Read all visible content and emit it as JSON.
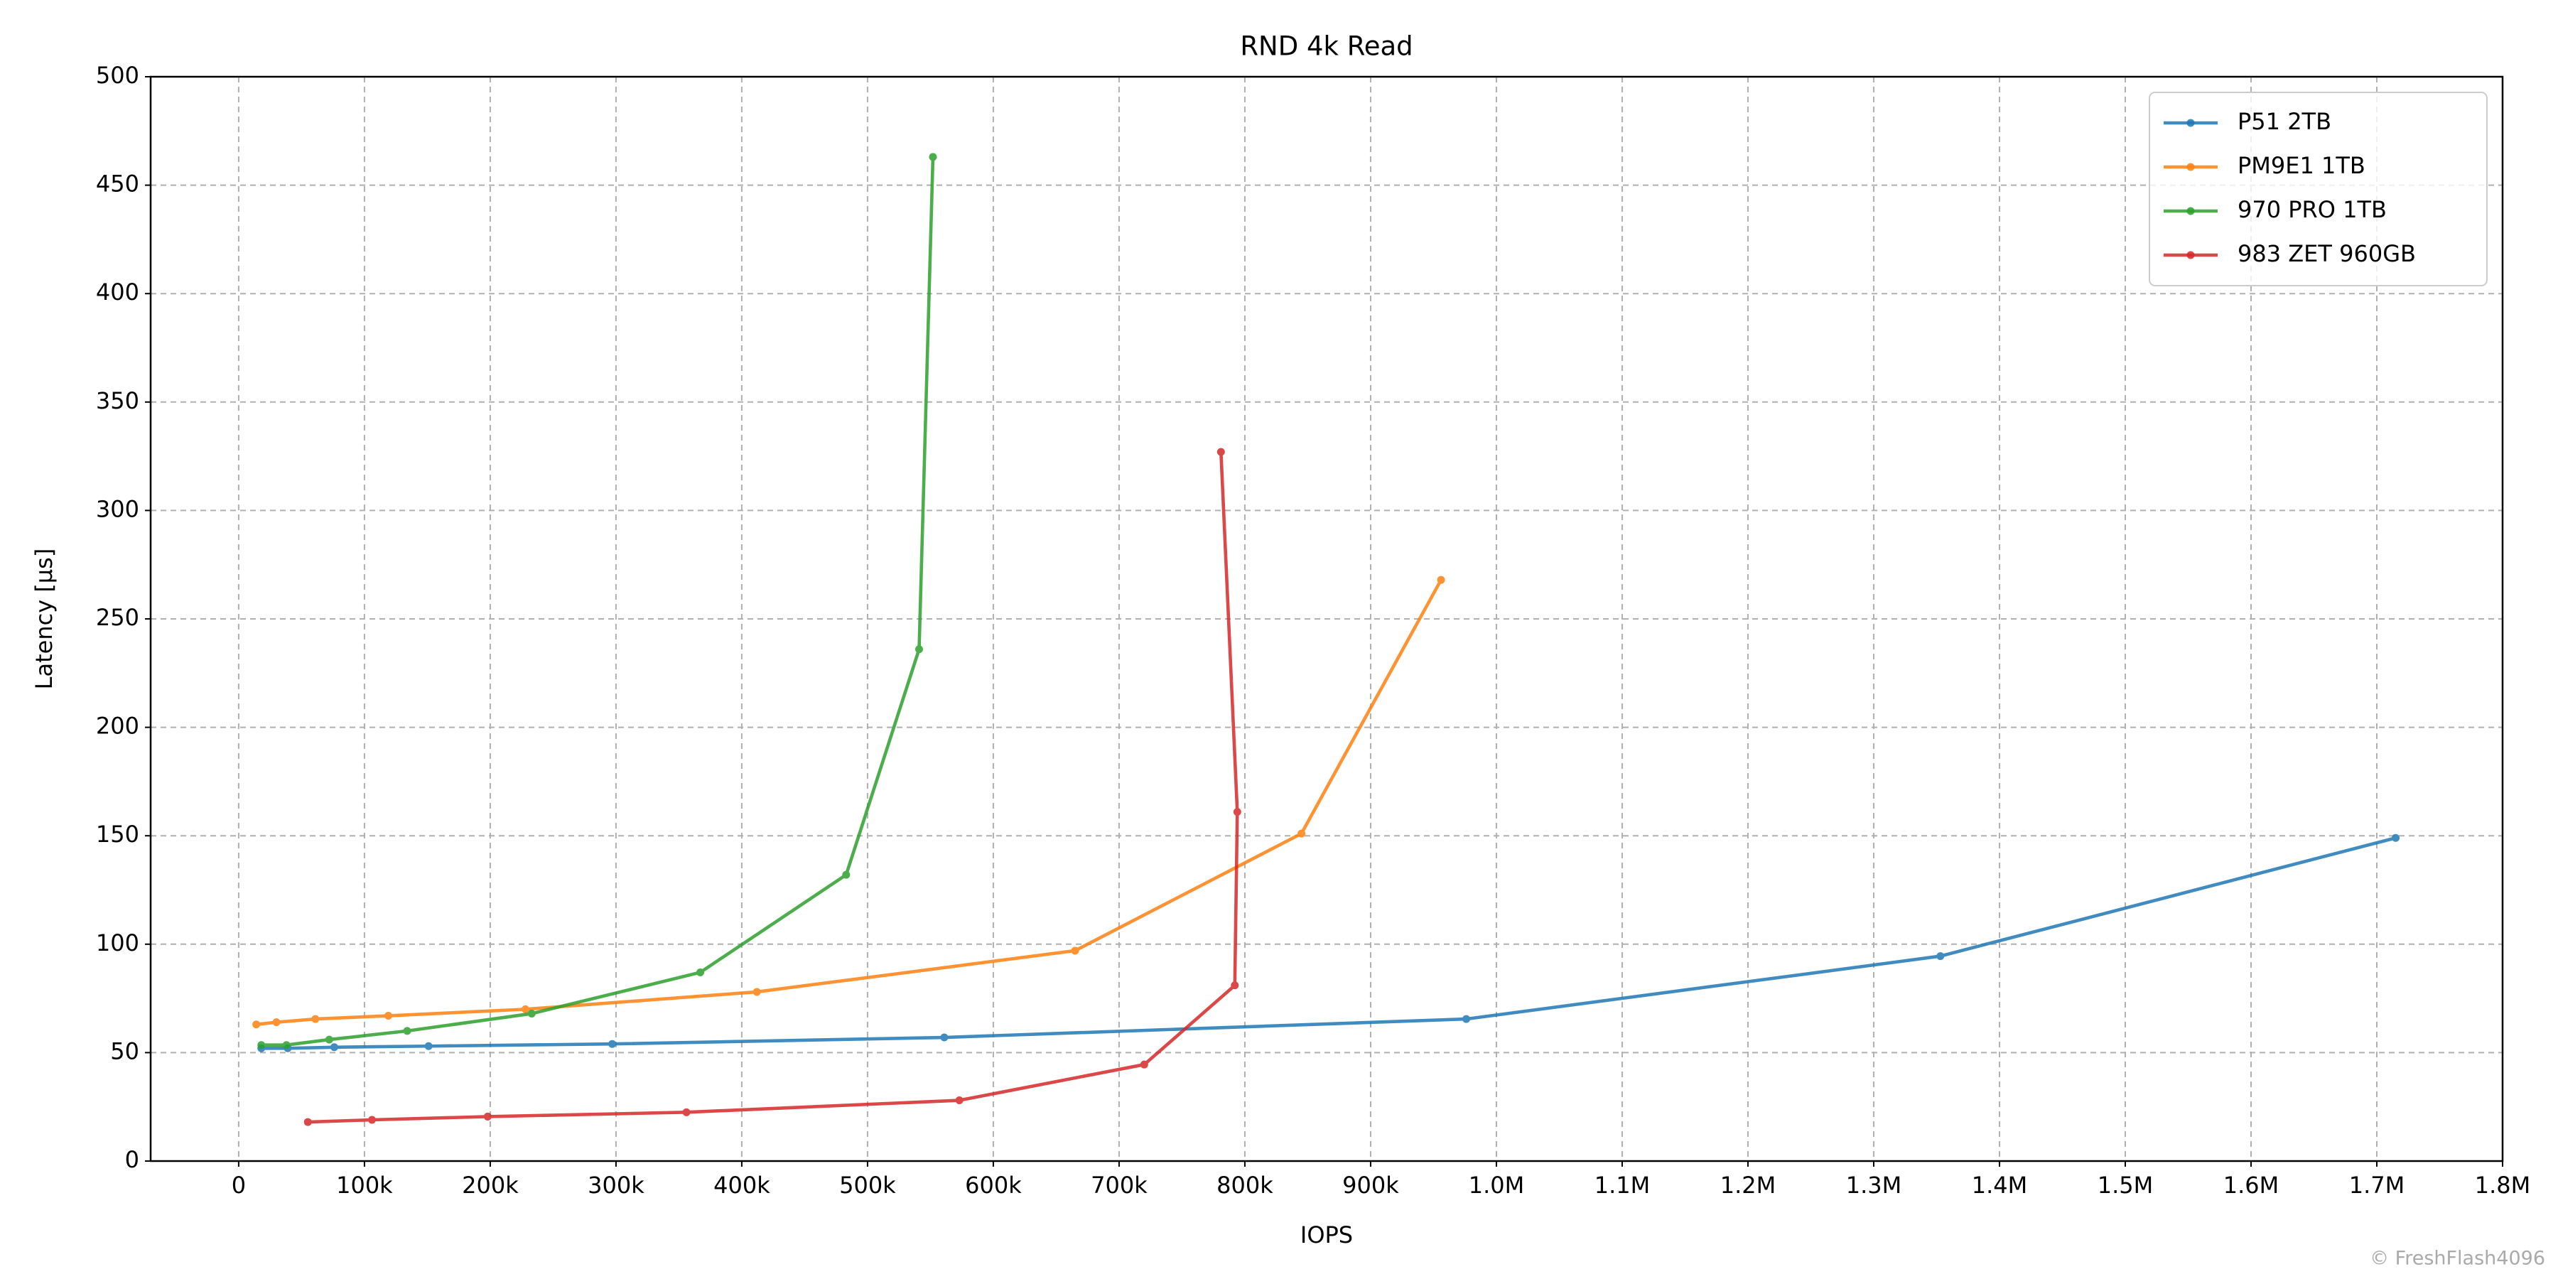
{
  "chart_data": {
    "type": "line",
    "title": "RND 4k Read",
    "x_label": "IOPS",
    "y_label": "Latency [µs]",
    "watermark": "© FreshFlash4096",
    "xlim": [
      -70000,
      1800000
    ],
    "ylim": [
      0,
      500
    ],
    "xticks": [
      0,
      {
        "value": 100000,
        "label": "100k"
      },
      {
        "value": 200000,
        "label": "200k"
      },
      {
        "value": 300000,
        "label": "300k"
      },
      {
        "value": 400000,
        "label": "400k"
      },
      {
        "value": 500000,
        "label": "500k"
      },
      {
        "value": 600000,
        "label": "600k"
      },
      {
        "value": 700000,
        "label": "700k"
      },
      {
        "value": 800000,
        "label": "800k"
      },
      {
        "value": 900000,
        "label": "900k"
      },
      {
        "value": 1000000,
        "label": "1.0M"
      },
      {
        "value": 1100000,
        "label": "1.1M"
      },
      {
        "value": 1200000,
        "label": "1.2M"
      },
      {
        "value": 1300000,
        "label": "1.3M"
      },
      {
        "value": 1400000,
        "label": "1.4M"
      },
      {
        "value": 1500000,
        "label": "1.5M"
      },
      {
        "value": 1600000,
        "label": "1.6M"
      },
      {
        "value": 1700000,
        "label": "1.7M"
      },
      {
        "value": 1800000,
        "label": "1.8M"
      }
    ],
    "yticks": [
      0,
      50,
      100,
      150,
      200,
      250,
      300,
      350,
      400,
      450,
      500
    ],
    "grid": true,
    "legend": "upper right",
    "series": [
      {
        "name": "P51 2TB",
        "color": "#1f77b4",
        "x": [
          18000,
          39000,
          76000,
          151000,
          297000,
          561000,
          976000,
          1353000,
          1715000
        ],
        "values": [
          52,
          52,
          52.5,
          53,
          54,
          57,
          65.5,
          94.5,
          149
        ]
      },
      {
        "name": "PM9E1 1TB",
        "color": "#ff7f0e",
        "x": [
          14000,
          30000,
          61000,
          119000,
          228000,
          412000,
          665000,
          845000,
          956000
        ],
        "values": [
          63,
          64,
          65.5,
          67,
          70,
          78,
          97,
          151,
          268
        ]
      },
      {
        "name": "970 PRO 1TB",
        "color": "#2ca02c",
        "x": [
          18000,
          38000,
          72000,
          134000,
          233000,
          367000,
          483000,
          541000,
          552000
        ],
        "values": [
          53.5,
          53.5,
          56,
          60,
          68,
          87,
          132,
          236,
          463
        ]
      },
      {
        "name": "983 ZET 960GB",
        "color": "#d62728",
        "x": [
          55000,
          106000,
          198000,
          356000,
          573000,
          720000,
          792000,
          794000,
          781000
        ],
        "values": [
          18,
          19,
          20.5,
          22.5,
          28,
          44.5,
          81,
          161,
          327
        ]
      }
    ]
  }
}
